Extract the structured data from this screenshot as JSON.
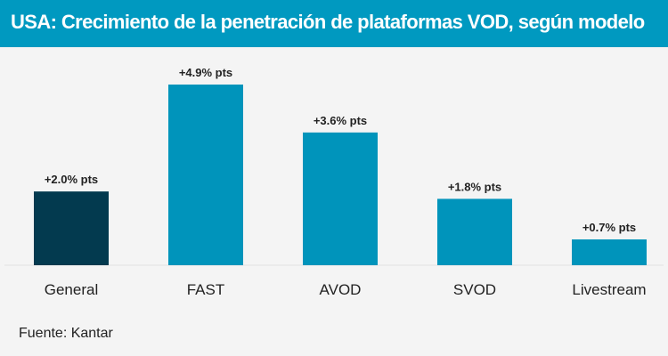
{
  "header": {
    "title": "USA: Crecimiento de la penetración de plataformas VOD, según modelo"
  },
  "chart_data": {
    "type": "bar",
    "title": "USA: Crecimiento de la penetración de plataformas VOD, según modelo",
    "categories": [
      "General",
      "FAST",
      "AVOD",
      "SVOD",
      "Livestream"
    ],
    "values": [
      2.0,
      4.9,
      3.6,
      1.8,
      0.7
    ],
    "data_labels": [
      "+2.0% pts",
      "+4.9% pts",
      "+3.6% pts",
      "+1.8% pts",
      "+0.7% pts"
    ],
    "colors": [
      "#033a4f",
      "#0094bb",
      "#0094bb",
      "#0094bb",
      "#0094bb"
    ],
    "xlabel": "",
    "ylabel": "",
    "ylim": [
      0,
      4.9
    ],
    "grid": false
  },
  "footer": {
    "source": "Fuente: Kantar"
  }
}
